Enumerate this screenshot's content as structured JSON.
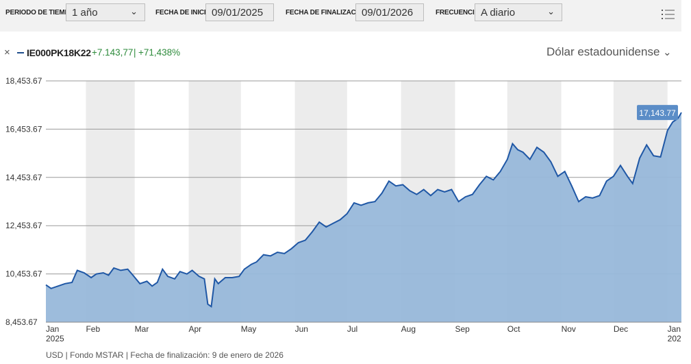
{
  "toolbar": {
    "period_label": "PERIODO DE TIEMPO",
    "period_value": "1 año",
    "start_label": "FECHA DE INICIO",
    "start_value": "09/01/2025",
    "end_label": "FECHA DE FINALIZACIÓN",
    "end_value": "09/01/2026",
    "freq_label": "FRECUENCIA",
    "freq_value": "A diario",
    "menu_icon": "hamburger-list-icon"
  },
  "series_header": {
    "close_symbol": "×",
    "code": "IE000PK18K22",
    "change": "+7.143,77",
    "separator": "|",
    "change_pct": "+71,438%"
  },
  "currency": {
    "label": "Dólar estadounidense",
    "icon": "chevron-down-icon"
  },
  "colors": {
    "line": "#1f57a5",
    "area": "#98b8da",
    "band": "#ececec",
    "gain": "#2e8b3c",
    "badge": "#5b8dc7"
  },
  "chart_data": {
    "type": "area",
    "series": [
      {
        "name": "IE000PK18K22",
        "values": [
          {
            "x": "2025-01-09",
            "y": 10000
          },
          {
            "x": "2025-01-12",
            "y": 9850
          },
          {
            "x": "2025-01-16",
            "y": 9950
          },
          {
            "x": "2025-01-20",
            "y": 10050
          },
          {
            "x": "2025-01-24",
            "y": 10100
          },
          {
            "x": "2025-01-27",
            "y": 10600
          },
          {
            "x": "2025-01-31",
            "y": 10500
          },
          {
            "x": "2025-02-04",
            "y": 10300
          },
          {
            "x": "2025-02-07",
            "y": 10450
          },
          {
            "x": "2025-02-11",
            "y": 10500
          },
          {
            "x": "2025-02-14",
            "y": 10400
          },
          {
            "x": "2025-02-17",
            "y": 10700
          },
          {
            "x": "2025-02-21",
            "y": 10600
          },
          {
            "x": "2025-02-25",
            "y": 10650
          },
          {
            "x": "2025-02-28",
            "y": 10400
          },
          {
            "x": "2025-03-04",
            "y": 10050
          },
          {
            "x": "2025-03-08",
            "y": 10150
          },
          {
            "x": "2025-03-11",
            "y": 9950
          },
          {
            "x": "2025-03-14",
            "y": 10100
          },
          {
            "x": "2025-03-17",
            "y": 10650
          },
          {
            "x": "2025-03-20",
            "y": 10350
          },
          {
            "x": "2025-03-24",
            "y": 10250
          },
          {
            "x": "2025-03-27",
            "y": 10550
          },
          {
            "x": "2025-03-31",
            "y": 10450
          },
          {
            "x": "2025-04-03",
            "y": 10600
          },
          {
            "x": "2025-04-07",
            "y": 10350
          },
          {
            "x": "2025-04-10",
            "y": 10250
          },
          {
            "x": "2025-04-12",
            "y": 9200
          },
          {
            "x": "2025-04-14",
            "y": 9100
          },
          {
            "x": "2025-04-16",
            "y": 10250
          },
          {
            "x": "2025-04-18",
            "y": 10050
          },
          {
            "x": "2025-04-22",
            "y": 10300
          },
          {
            "x": "2025-04-26",
            "y": 10300
          },
          {
            "x": "2025-04-30",
            "y": 10350
          },
          {
            "x": "2025-05-03",
            "y": 10650
          },
          {
            "x": "2025-05-07",
            "y": 10850
          },
          {
            "x": "2025-05-10",
            "y": 10950
          },
          {
            "x": "2025-05-14",
            "y": 11250
          },
          {
            "x": "2025-05-18",
            "y": 11200
          },
          {
            "x": "2025-05-22",
            "y": 11350
          },
          {
            "x": "2025-05-26",
            "y": 11300
          },
          {
            "x": "2025-05-30",
            "y": 11500
          },
          {
            "x": "2025-06-03",
            "y": 11750
          },
          {
            "x": "2025-06-07",
            "y": 11850
          },
          {
            "x": "2025-06-11",
            "y": 12200
          },
          {
            "x": "2025-06-15",
            "y": 12600
          },
          {
            "x": "2025-06-19",
            "y": 12400
          },
          {
            "x": "2025-06-23",
            "y": 12550
          },
          {
            "x": "2025-06-27",
            "y": 12700
          },
          {
            "x": "2025-07-01",
            "y": 12950
          },
          {
            "x": "2025-07-05",
            "y": 13400
          },
          {
            "x": "2025-07-09",
            "y": 13300
          },
          {
            "x": "2025-07-13",
            "y": 13400
          },
          {
            "x": "2025-07-17",
            "y": 13450
          },
          {
            "x": "2025-07-21",
            "y": 13800
          },
          {
            "x": "2025-07-25",
            "y": 14300
          },
          {
            "x": "2025-07-29",
            "y": 14100
          },
          {
            "x": "2025-08-02",
            "y": 14150
          },
          {
            "x": "2025-08-06",
            "y": 13900
          },
          {
            "x": "2025-08-10",
            "y": 13750
          },
          {
            "x": "2025-08-14",
            "y": 13950
          },
          {
            "x": "2025-08-18",
            "y": 13700
          },
          {
            "x": "2025-08-22",
            "y": 13950
          },
          {
            "x": "2025-08-26",
            "y": 13850
          },
          {
            "x": "2025-08-30",
            "y": 13950
          },
          {
            "x": "2025-09-03",
            "y": 13450
          },
          {
            "x": "2025-09-07",
            "y": 13650
          },
          {
            "x": "2025-09-11",
            "y": 13750
          },
          {
            "x": "2025-09-15",
            "y": 14150
          },
          {
            "x": "2025-09-19",
            "y": 14500
          },
          {
            "x": "2025-09-23",
            "y": 14350
          },
          {
            "x": "2025-09-27",
            "y": 14700
          },
          {
            "x": "2025-10-01",
            "y": 15200
          },
          {
            "x": "2025-10-04",
            "y": 15850
          },
          {
            "x": "2025-10-07",
            "y": 15600
          },
          {
            "x": "2025-10-10",
            "y": 15500
          },
          {
            "x": "2025-10-14",
            "y": 15200
          },
          {
            "x": "2025-10-18",
            "y": 15700
          },
          {
            "x": "2025-10-22",
            "y": 15500
          },
          {
            "x": "2025-10-26",
            "y": 15100
          },
          {
            "x": "2025-10-30",
            "y": 14500
          },
          {
            "x": "2025-11-03",
            "y": 14700
          },
          {
            "x": "2025-11-07",
            "y": 14100
          },
          {
            "x": "2025-11-11",
            "y": 13450
          },
          {
            "x": "2025-11-15",
            "y": 13650
          },
          {
            "x": "2025-11-19",
            "y": 13600
          },
          {
            "x": "2025-11-23",
            "y": 13700
          },
          {
            "x": "2025-11-27",
            "y": 14300
          },
          {
            "x": "2025-12-01",
            "y": 14500
          },
          {
            "x": "2025-12-05",
            "y": 14950
          },
          {
            "x": "2025-12-09",
            "y": 14500
          },
          {
            "x": "2025-12-12",
            "y": 14200
          },
          {
            "x": "2025-12-16",
            "y": 15250
          },
          {
            "x": "2025-12-20",
            "y": 15800
          },
          {
            "x": "2025-12-24",
            "y": 15350
          },
          {
            "x": "2025-12-28",
            "y": 15300
          },
          {
            "x": "2026-01-01",
            "y": 16400
          },
          {
            "x": "2026-01-04",
            "y": 16750
          },
          {
            "x": "2026-01-07",
            "y": 16900
          },
          {
            "x": "2026-01-09",
            "y": 17143.77
          }
        ]
      }
    ],
    "xlim": [
      "2025-01-09",
      "2026-01-09"
    ],
    "ylim": [
      8453.67,
      18453.67
    ],
    "yticks": [
      {
        "value": 18453.67,
        "label": "18,453.67"
      },
      {
        "value": 16453.67,
        "label": "16,453.67"
      },
      {
        "value": 14453.67,
        "label": "14,453.67"
      },
      {
        "value": 12453.67,
        "label": "12,453.67"
      },
      {
        "value": 10453.67,
        "label": "10,453.67"
      },
      {
        "value": 8453.67,
        "label": "8,453.67"
      }
    ],
    "xticks": [
      {
        "date": "2025-01-09",
        "label": "Jan",
        "sublabel": "2025"
      },
      {
        "date": "2025-02-01",
        "label": "Feb"
      },
      {
        "date": "2025-03-01",
        "label": "Mar"
      },
      {
        "date": "2025-04-01",
        "label": "Apr"
      },
      {
        "date": "2025-05-01",
        "label": "May"
      },
      {
        "date": "2025-06-01",
        "label": "Jun"
      },
      {
        "date": "2025-07-01",
        "label": "Jul"
      },
      {
        "date": "2025-08-01",
        "label": "Aug"
      },
      {
        "date": "2025-09-01",
        "label": "Sep"
      },
      {
        "date": "2025-10-01",
        "label": "Oct"
      },
      {
        "date": "2025-11-01",
        "label": "Nov"
      },
      {
        "date": "2025-12-01",
        "label": "Dec"
      },
      {
        "date": "2026-01-01",
        "label": "Jan",
        "sublabel": "202"
      }
    ],
    "last_value_label": "17,143.77",
    "grid": true,
    "alternating_month_bands": true
  },
  "footer": "USD | Fondo MSTAR | Fecha de finalización: 9 de enero de 2026"
}
